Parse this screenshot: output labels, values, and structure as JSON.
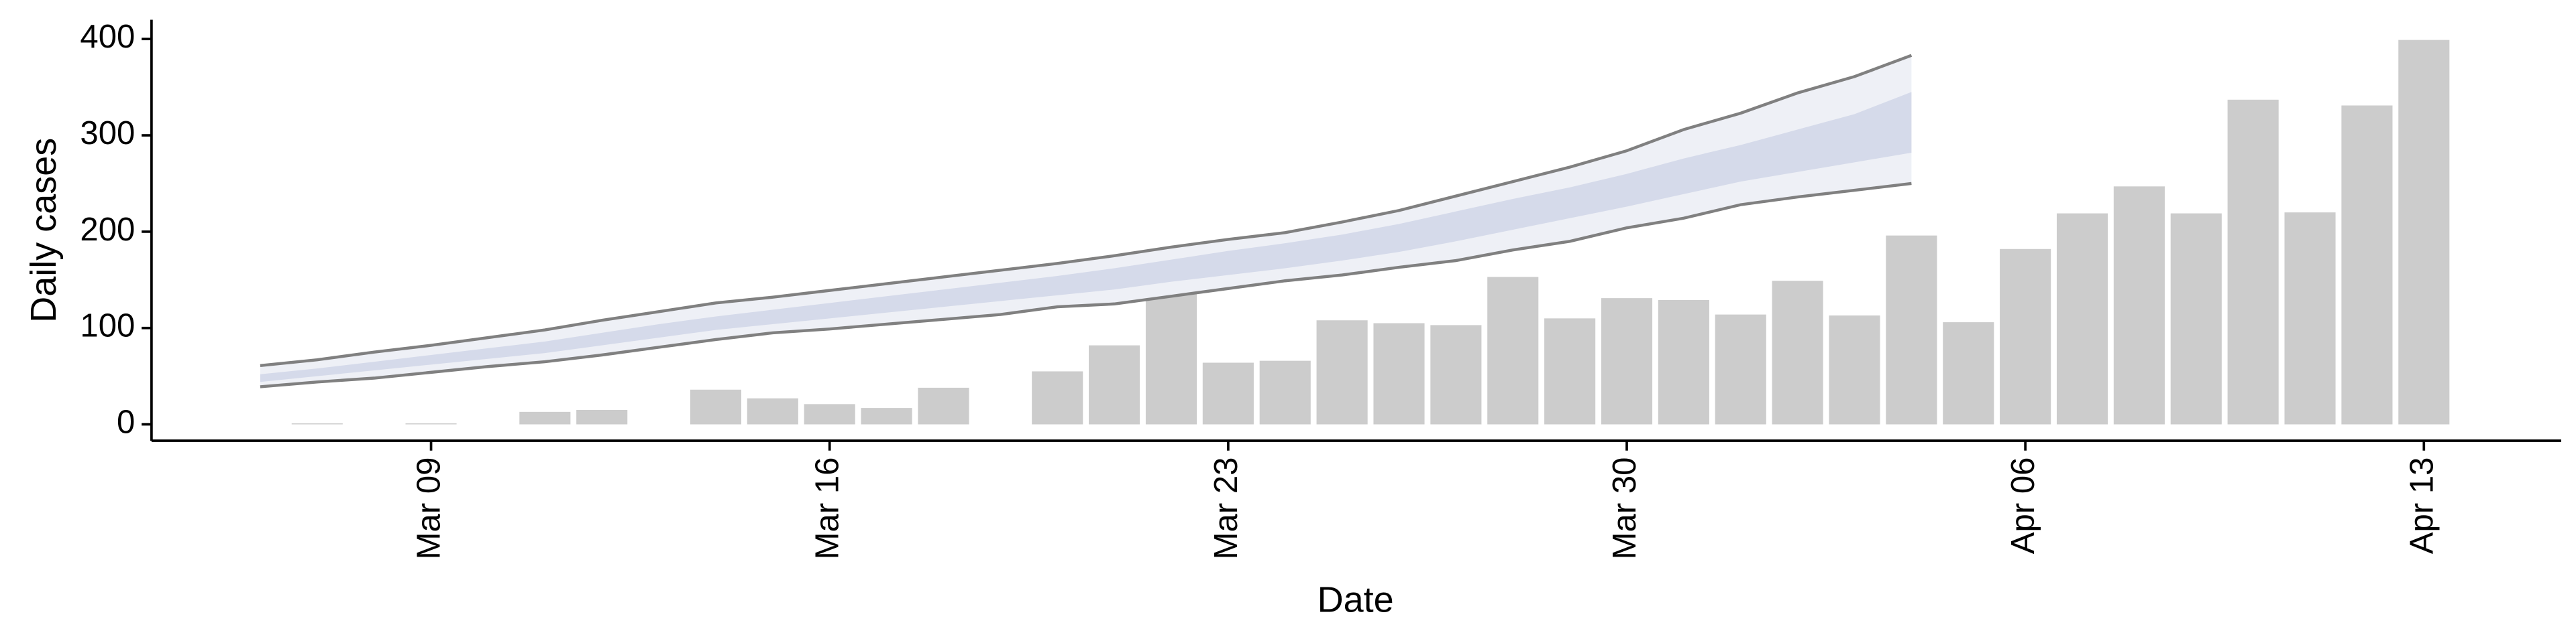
{
  "chart_data": {
    "type": "bar",
    "y_label": "Daily cases",
    "x_label": "Date",
    "categories": [
      "Mar 06",
      "Mar 07",
      "Mar 08",
      "Mar 09",
      "Mar 10",
      "Mar 11",
      "Mar 12",
      "Mar 13",
      "Mar 14",
      "Mar 15",
      "Mar 16",
      "Mar 17",
      "Mar 18",
      "Mar 19",
      "Mar 20",
      "Mar 21",
      "Mar 22",
      "Mar 23",
      "Mar 24",
      "Mar 25",
      "Mar 26",
      "Mar 27",
      "Mar 28",
      "Mar 29",
      "Mar 30",
      "Mar 31",
      "Apr 01",
      "Apr 02",
      "Apr 03",
      "Apr 04",
      "Apr 05",
      "Apr 06",
      "Apr 07",
      "Apr 08",
      "Apr 09",
      "Apr 10",
      "Apr 11",
      "Apr 12",
      "Apr 13"
    ],
    "values": [
      0,
      1,
      0,
      1,
      0,
      13,
      15,
      0,
      36,
      27,
      21,
      17,
      38,
      0,
      55,
      82,
      141,
      64,
      66,
      108,
      105,
      103,
      153,
      110,
      131,
      129,
      114,
      149,
      113,
      196,
      106,
      182,
      219,
      247,
      219,
      337,
      220,
      331,
      399
    ],
    "color": "#cccccc",
    "xticks": [
      "Mar 09",
      "Mar 16",
      "Mar 23",
      "Mar 30",
      "Apr 06",
      "Apr 13"
    ],
    "ylim": [
      -17,
      420
    ],
    "yticks": [
      0,
      100,
      200,
      300,
      400
    ],
    "forecast_bands": [
      {
        "color": "#eef0f6",
        "line_color": "#808080",
        "lower": [
          39,
          44,
          48,
          54,
          60,
          65,
          72,
          80,
          88,
          95,
          99,
          104,
          109,
          114,
          122,
          125,
          133,
          141,
          149,
          155,
          163,
          170,
          181,
          190,
          204,
          214,
          228,
          236,
          243,
          250
        ],
        "upper": [
          61,
          67,
          75,
          82,
          90,
          98,
          108,
          117,
          126,
          132,
          139,
          146,
          153,
          160,
          167,
          175,
          184,
          192,
          199,
          210,
          222,
          237,
          252,
          267,
          284,
          306,
          323,
          344,
          361,
          383
        ]
      },
      {
        "color": "#d5daea",
        "lower": [
          44,
          50,
          56,
          62,
          68,
          74,
          82,
          90,
          98,
          104,
          110,
          116,
          122,
          128,
          134,
          140,
          148,
          155,
          162,
          170,
          179,
          190,
          202,
          214,
          226,
          239,
          252,
          262,
          272,
          282
        ],
        "upper": [
          52,
          58,
          65,
          72,
          79,
          86,
          95,
          104,
          112,
          119,
          126,
          133,
          140,
          147,
          154,
          162,
          171,
          180,
          188,
          197,
          208,
          221,
          234,
          246,
          260,
          276,
          290,
          306,
          322,
          345
        ]
      }
    ]
  }
}
